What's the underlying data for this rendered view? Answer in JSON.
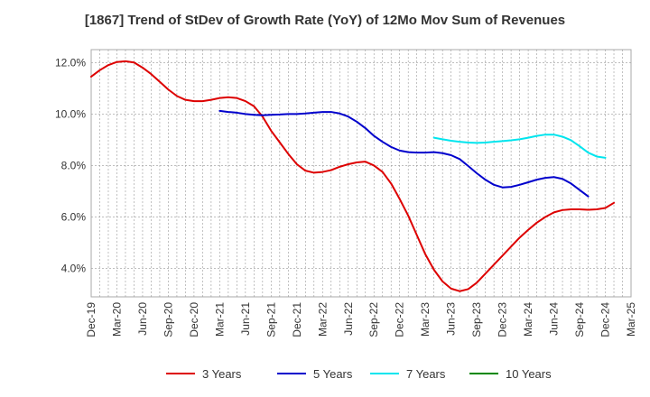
{
  "chart_data": {
    "type": "line",
    "title": "[1867]  Trend of StDev of Growth Rate (YoY) of 12Mo Mov Sum of Revenues",
    "xlabel": "",
    "ylabel": "",
    "ylim": [
      2.9,
      12.5
    ],
    "y_ticks": [
      4.0,
      6.0,
      8.0,
      10.0,
      12.0
    ],
    "y_tick_labels": [
      "4.0%",
      "6.0%",
      "8.0%",
      "10.0%",
      "12.0%"
    ],
    "x_tick_labels": [
      "Dec-19",
      "Mar-20",
      "Jun-20",
      "Sep-20",
      "Dec-20",
      "Mar-21",
      "Jun-21",
      "Sep-21",
      "Dec-21",
      "Mar-22",
      "Jun-22",
      "Sep-22",
      "Dec-22",
      "Mar-23",
      "Jun-23",
      "Sep-23",
      "Dec-23",
      "Mar-24",
      "Jun-24",
      "Sep-24",
      "Dec-24",
      "Mar-25"
    ],
    "x_start": "Dec-19",
    "x_count_months": 63,
    "grid": true,
    "legend_position": "bottom",
    "series": [
      {
        "name": "3 Years",
        "color": "#dd0000",
        "start_index": 0,
        "values": [
          11.45,
          11.7,
          11.9,
          12.02,
          12.05,
          12.0,
          11.8,
          11.55,
          11.25,
          10.95,
          10.7,
          10.55,
          10.5,
          10.5,
          10.55,
          10.62,
          10.65,
          10.62,
          10.5,
          10.3,
          9.9,
          9.35,
          8.9,
          8.45,
          8.05,
          7.8,
          7.72,
          7.75,
          7.82,
          7.95,
          8.05,
          8.12,
          8.15,
          8.0,
          7.75,
          7.3,
          6.7,
          6.05,
          5.3,
          4.55,
          3.95,
          3.5,
          3.22,
          3.12,
          3.2,
          3.45,
          3.8,
          4.15,
          4.5,
          4.85,
          5.2,
          5.5,
          5.78,
          6.0,
          6.18,
          6.27,
          6.3,
          6.3,
          6.28,
          6.3,
          6.35,
          6.55
        ]
      },
      {
        "name": "5 Years",
        "color": "#0000cc",
        "start_index": 15,
        "values": [
          10.12,
          10.08,
          10.05,
          10.0,
          9.97,
          9.95,
          9.97,
          9.98,
          10.0,
          10.0,
          10.02,
          10.05,
          10.08,
          10.08,
          10.02,
          9.9,
          9.7,
          9.45,
          9.15,
          8.92,
          8.72,
          8.58,
          8.52,
          8.5,
          8.5,
          8.52,
          8.48,
          8.4,
          8.25,
          7.98,
          7.7,
          7.45,
          7.25,
          7.15,
          7.17,
          7.25,
          7.35,
          7.45,
          7.52,
          7.55,
          7.48,
          7.3,
          7.05,
          6.8
        ]
      },
      {
        "name": "7 Years",
        "color": "#00e5ee",
        "start_index": 40,
        "values": [
          9.08,
          9.02,
          8.96,
          8.92,
          8.89,
          8.88,
          8.89,
          8.92,
          8.95,
          8.98,
          9.02,
          9.08,
          9.15,
          9.2,
          9.2,
          9.12,
          8.98,
          8.75,
          8.5,
          8.35,
          8.3
        ]
      },
      {
        "name": "10 Years",
        "color": "#008800",
        "start_index": 0,
        "values": []
      }
    ]
  }
}
